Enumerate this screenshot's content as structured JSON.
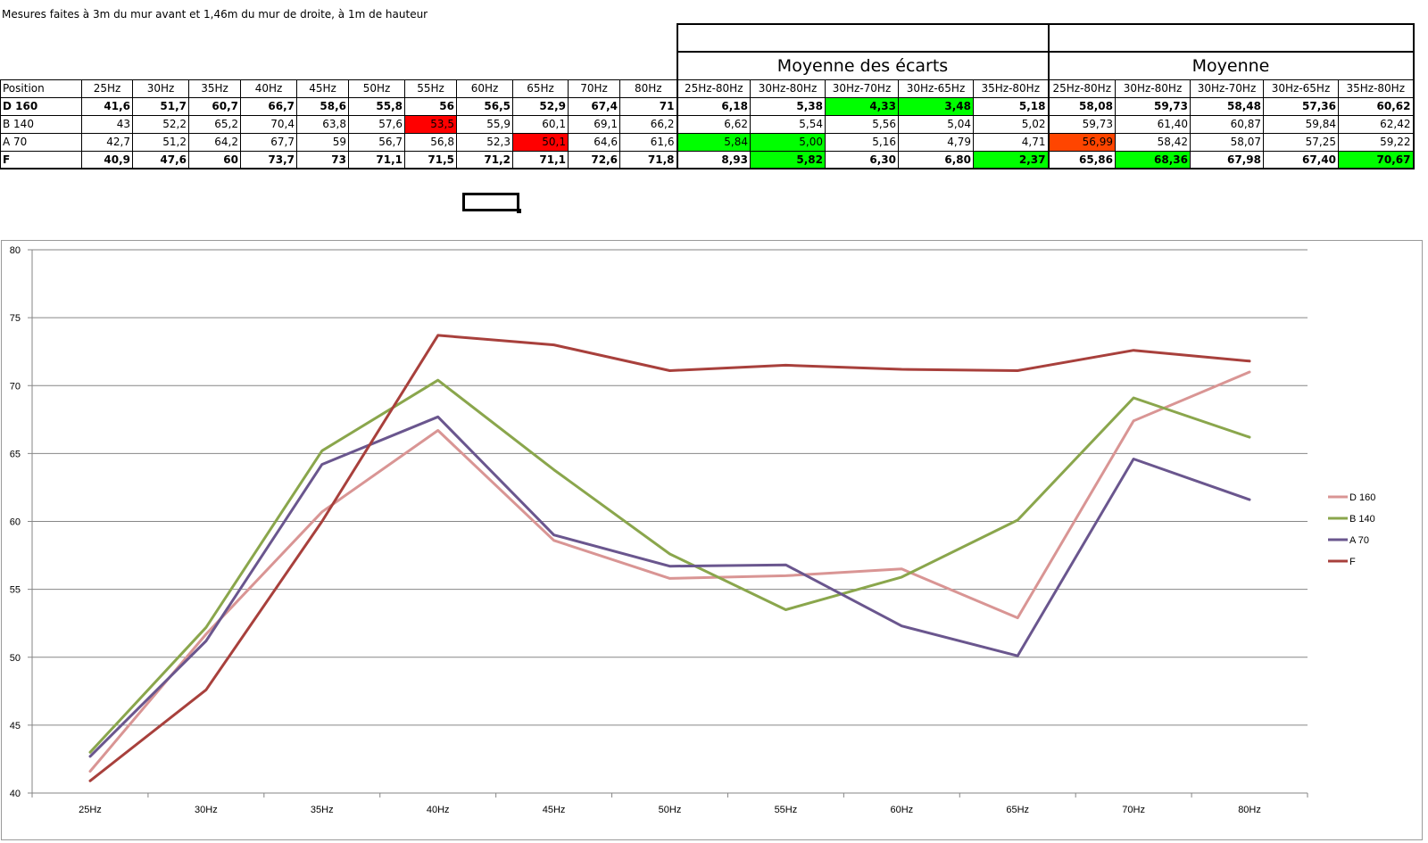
{
  "note": "Mesures faites à 3m du mur avant et 1,46m du mur de droite, à 1m de hauteur",
  "table": {
    "position_header": "Position",
    "freq_headers": [
      "25Hz",
      "30Hz",
      "35Hz",
      "40Hz",
      "45Hz",
      "50Hz",
      "55Hz",
      "60Hz",
      "65Hz",
      "70Hz",
      "80Hz"
    ],
    "group1_title": "Moyenne des écarts",
    "group2_title": "Moyenne",
    "range_headers": [
      "25Hz-80Hz",
      "30Hz-80Hz",
      "30Hz-70Hz",
      "30Hz-65Hz",
      "35Hz-80Hz"
    ],
    "rows": [
      {
        "label": "D 160",
        "bold": true,
        "values": [
          "41,6",
          "51,7",
          "60,7",
          "66,7",
          "58,6",
          "55,8",
          "56",
          "56,5",
          "52,9",
          "67,4",
          "71"
        ],
        "ecarts": [
          "6,18",
          "5,38",
          "4,33",
          "3,48",
          "5,18"
        ],
        "moyennes": [
          "58,08",
          "59,73",
          "58,48",
          "57,36",
          "60,62"
        ]
      },
      {
        "label": "B 140",
        "bold": false,
        "values": [
          "43",
          "52,2",
          "65,2",
          "70,4",
          "63,8",
          "57,6",
          "53,5",
          "55,9",
          "60,1",
          "69,1",
          "66,2"
        ],
        "ecarts": [
          "6,62",
          "5,54",
          "5,56",
          "5,04",
          "5,02"
        ],
        "moyennes": [
          "59,73",
          "61,40",
          "60,87",
          "59,84",
          "62,42"
        ]
      },
      {
        "label": "A 70",
        "bold": false,
        "values": [
          "42,7",
          "51,2",
          "64,2",
          "67,7",
          "59",
          "56,7",
          "56,8",
          "52,3",
          "50,1",
          "64,6",
          "61,6"
        ],
        "ecarts": [
          "5,84",
          "5,00",
          "5,16",
          "4,79",
          "4,71"
        ],
        "moyennes": [
          "56,99",
          "58,42",
          "58,07",
          "57,25",
          "59,22"
        ]
      },
      {
        "label": "F",
        "bold": true,
        "values": [
          "40,9",
          "47,6",
          "60",
          "73,7",
          "73",
          "71,1",
          "71,5",
          "71,2",
          "71,1",
          "72,6",
          "71,8"
        ],
        "ecarts": [
          "8,93",
          "5,82",
          "6,30",
          "6,80",
          "2,37"
        ],
        "moyennes": [
          "65,86",
          "68,36",
          "67,98",
          "67,40",
          "70,67"
        ]
      }
    ],
    "highlights": {
      "green": "#00ff00",
      "red": "#ff0000",
      "orange": "#ff4500",
      "cells": [
        {
          "row": 0,
          "col": "ecarts",
          "idx": 2,
          "color": "green"
        },
        {
          "row": 0,
          "col": "ecarts",
          "idx": 3,
          "color": "green"
        },
        {
          "row": 1,
          "col": "values",
          "idx": 6,
          "color": "red"
        },
        {
          "row": 2,
          "col": "values",
          "idx": 8,
          "color": "red"
        },
        {
          "row": 2,
          "col": "ecarts",
          "idx": 0,
          "color": "green"
        },
        {
          "row": 2,
          "col": "ecarts",
          "idx": 1,
          "color": "green"
        },
        {
          "row": 2,
          "col": "moyennes",
          "idx": 0,
          "color": "orange"
        },
        {
          "row": 3,
          "col": "ecarts",
          "idx": 1,
          "color": "green"
        },
        {
          "row": 3,
          "col": "ecarts",
          "idx": 4,
          "color": "green"
        },
        {
          "row": 3,
          "col": "moyennes",
          "idx": 1,
          "color": "green"
        },
        {
          "row": 3,
          "col": "moyennes",
          "idx": 4,
          "color": "green"
        }
      ]
    }
  },
  "chart_data": {
    "type": "line",
    "title": "",
    "xlabel": "",
    "ylabel": "",
    "categories": [
      "25Hz",
      "30Hz",
      "35Hz",
      "40Hz",
      "45Hz",
      "50Hz",
      "55Hz",
      "60Hz",
      "65Hz",
      "70Hz",
      "80Hz"
    ],
    "ylim": [
      40,
      80
    ],
    "yticks": [
      40,
      45,
      50,
      55,
      60,
      65,
      70,
      75,
      80
    ],
    "grid": true,
    "legend_position": "right",
    "series": [
      {
        "name": "D 160",
        "color": "#d99594",
        "values": [
          41.6,
          51.7,
          60.7,
          66.7,
          58.6,
          55.8,
          56,
          56.5,
          52.9,
          67.4,
          71
        ]
      },
      {
        "name": "B 140",
        "color": "#8aa64c",
        "values": [
          43,
          52.2,
          65.2,
          70.4,
          63.8,
          57.6,
          53.5,
          55.9,
          60.1,
          69.1,
          66.2
        ]
      },
      {
        "name": "A 70",
        "color": "#6a568e",
        "values": [
          42.7,
          51.2,
          64.2,
          67.7,
          59,
          56.7,
          56.8,
          52.3,
          50.1,
          64.6,
          61.6
        ]
      },
      {
        "name": "F",
        "color": "#a8403c",
        "values": [
          40.9,
          47.6,
          60,
          73.7,
          73,
          71.1,
          71.5,
          71.2,
          71.1,
          72.6,
          71.8
        ]
      }
    ]
  }
}
